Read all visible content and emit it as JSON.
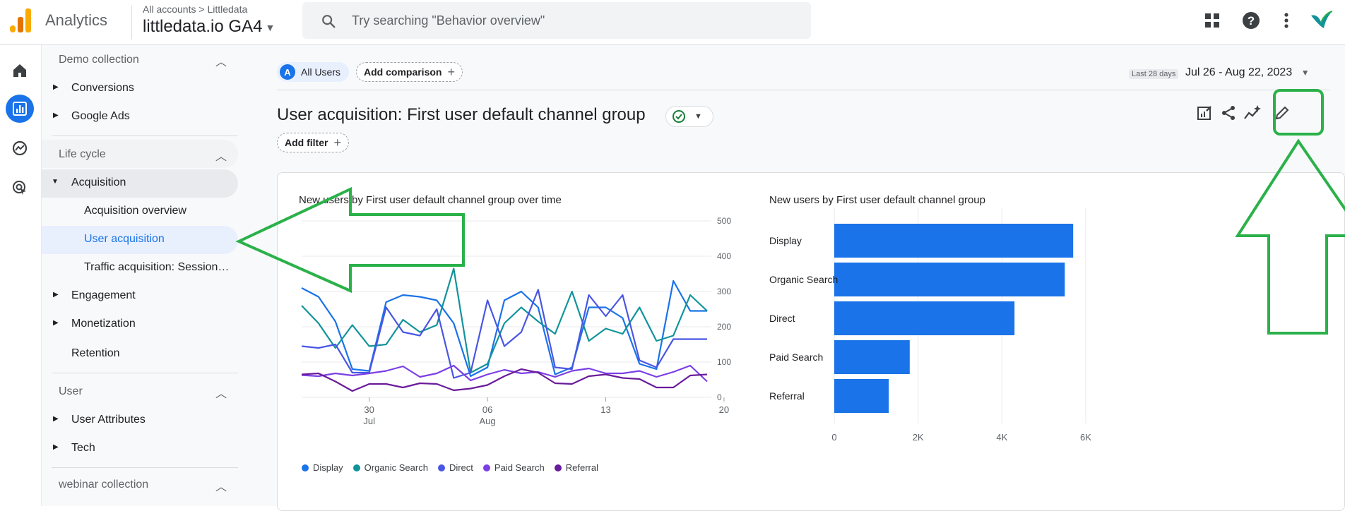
{
  "header": {
    "app_name": "Analytics",
    "breadcrumb": "All accounts > Littledata",
    "property": "littledata.io GA4",
    "search_placeholder": "Try searching \"Behavior overview\""
  },
  "nav": {
    "sections": [
      {
        "label": "Demo collection"
      },
      {
        "label": "Life cycle"
      },
      {
        "label": "User"
      },
      {
        "label": "webinar collection"
      }
    ],
    "items": {
      "conversions": "Conversions",
      "google_ads": "Google Ads",
      "acquisition": "Acquisition",
      "acquisition_overview": "Acquisition overview",
      "user_acquisition": "User acquisition",
      "traffic_acquisition": "Traffic acquisition: Session…",
      "engagement": "Engagement",
      "monetization": "Monetization",
      "retention": "Retention",
      "user_attributes": "User Attributes",
      "tech": "Tech"
    }
  },
  "toolbar": {
    "segment": "All Users",
    "segment_letter": "A",
    "add_comparison": "Add comparison",
    "date_label": "Last 28 days",
    "date_range": "Jul 26 - Aug 22, 2023",
    "title": "User acquisition: First user default channel group",
    "add_filter": "Add filter"
  },
  "colors": {
    "accent": "#1a73e8",
    "annotation": "#2bb14a",
    "Display": "#1a73e8",
    "Organic Search": "#12939a",
    "Direct": "#4a56e2",
    "Paid Search": "#7b3fe4",
    "Referral": "#6a1b9a"
  },
  "chart_data": [
    {
      "type": "line",
      "title": "New users by First user default channel group over time",
      "x_ticks": [
        {
          "i": 4,
          "label": "30",
          "sub": "Jul"
        },
        {
          "i": 11,
          "label": "06",
          "sub": "Aug"
        },
        {
          "i": 18,
          "label": "13",
          "sub": ""
        },
        {
          "i": 25,
          "label": "20",
          "sub": ""
        }
      ],
      "ylim": [
        0,
        500
      ],
      "y_ticks": [
        "0",
        "100",
        "200",
        "300",
        "400",
        "500"
      ],
      "legend": [
        "Display",
        "Organic Search",
        "Direct",
        "Paid Search",
        "Referral"
      ],
      "series": [
        {
          "name": "Display",
          "values": [
            310,
            285,
            215,
            80,
            75,
            270,
            290,
            285,
            275,
            210,
            60,
            85,
            275,
            300,
            255,
            65,
            85,
            255,
            255,
            225,
            95,
            80,
            330,
            245,
            245
          ]
        },
        {
          "name": "Organic Search",
          "values": [
            260,
            210,
            140,
            205,
            145,
            150,
            220,
            185,
            205,
            365,
            70,
            95,
            210,
            255,
            215,
            180,
            300,
            160,
            195,
            180,
            255,
            160,
            175,
            290,
            245
          ]
        },
        {
          "name": "Direct",
          "values": [
            145,
            140,
            150,
            70,
            70,
            255,
            185,
            175,
            250,
            55,
            70,
            275,
            145,
            185,
            305,
            85,
            80,
            290,
            230,
            290,
            105,
            85,
            165,
            165,
            165
          ]
        },
        {
          "name": "Paid Search",
          "values": [
            63,
            60,
            68,
            62,
            68,
            75,
            88,
            58,
            68,
            90,
            48,
            65,
            78,
            68,
            72,
            58,
            75,
            82,
            68,
            68,
            75,
            58,
            72,
            90,
            45
          ]
        },
        {
          "name": "Referral",
          "values": [
            65,
            68,
            45,
            18,
            38,
            38,
            28,
            40,
            38,
            20,
            25,
            35,
            60,
            80,
            70,
            40,
            38,
            60,
            65,
            55,
            52,
            28,
            28,
            62,
            65
          ]
        }
      ]
    },
    {
      "type": "bar",
      "orientation": "horizontal",
      "title": "New users by First user default channel group",
      "categories": [
        "Display",
        "Organic Search",
        "Direct",
        "Paid Search",
        "Referral"
      ],
      "values": [
        5700,
        5500,
        4300,
        1800,
        1300
      ],
      "xlim": [
        0,
        6000
      ],
      "x_ticks": [
        "0",
        "2K",
        "4K",
        "6K"
      ]
    }
  ]
}
